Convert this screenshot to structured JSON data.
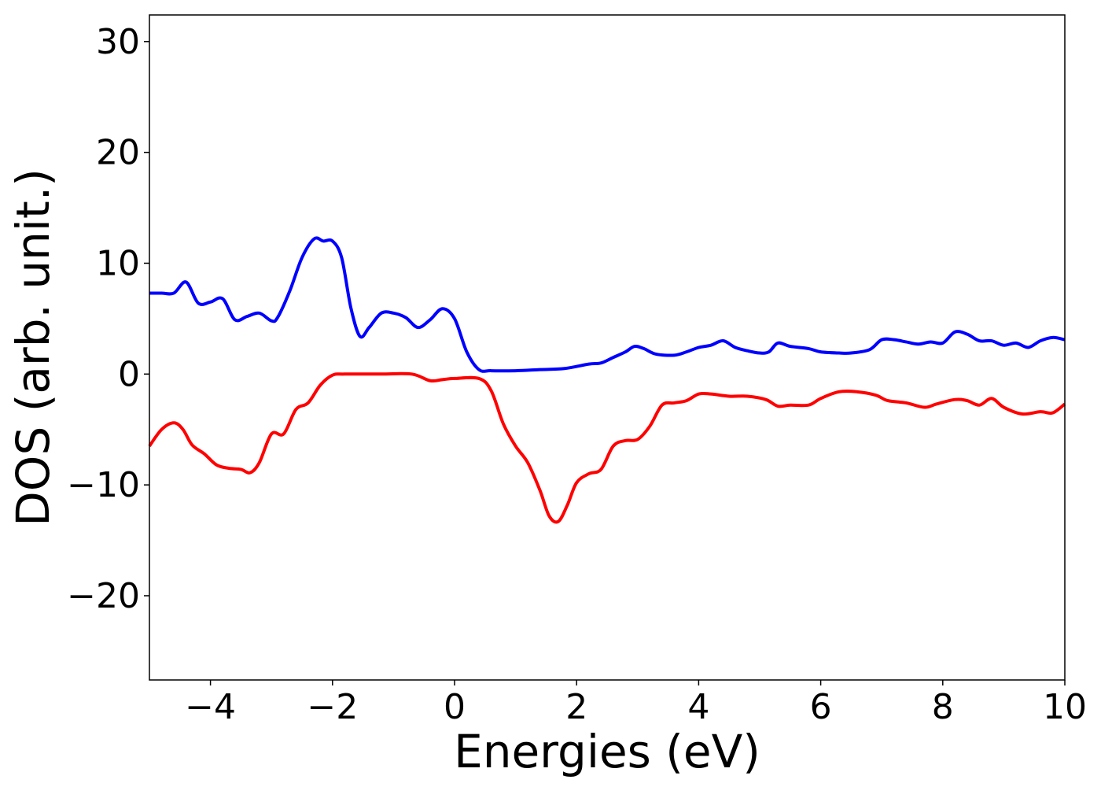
{
  "chart_data": {
    "type": "line",
    "title": "",
    "xlabel": "Energies (eV)",
    "ylabel": "DOS (arb. unit.)",
    "xlim": [
      -5,
      10
    ],
    "ylim": [
      -27.6,
      32.4
    ],
    "xticks": [
      -4,
      -2,
      0,
      2,
      4,
      6,
      8,
      10
    ],
    "xtick_labels": [
      "−4",
      "−2",
      "0",
      "2",
      "4",
      "6",
      "8",
      "10"
    ],
    "yticks": [
      -20,
      -10,
      0,
      10,
      20,
      30
    ],
    "ytick_labels": [
      "−20",
      "−10",
      "0",
      "10",
      "20",
      "30"
    ],
    "grid": false,
    "series": [
      {
        "color": "#0000ff",
        "points": [
          [
            -5.0,
            7.3
          ],
          [
            -4.8,
            7.3
          ],
          [
            -4.6,
            7.3
          ],
          [
            -4.4,
            8.3
          ],
          [
            -4.2,
            6.4
          ],
          [
            -4.0,
            6.5
          ],
          [
            -3.8,
            6.8
          ],
          [
            -3.6,
            4.9
          ],
          [
            -3.4,
            5.2
          ],
          [
            -3.2,
            5.5
          ],
          [
            -3.0,
            4.8
          ],
          [
            -2.9,
            5.1
          ],
          [
            -2.7,
            7.5
          ],
          [
            -2.5,
            10.5
          ],
          [
            -2.3,
            12.2
          ],
          [
            -2.15,
            12.0
          ],
          [
            -2.0,
            12.0
          ],
          [
            -1.85,
            10.5
          ],
          [
            -1.7,
            6.0
          ],
          [
            -1.55,
            3.4
          ],
          [
            -1.4,
            4.2
          ],
          [
            -1.2,
            5.5
          ],
          [
            -1.0,
            5.5
          ],
          [
            -0.8,
            5.1
          ],
          [
            -0.6,
            4.2
          ],
          [
            -0.4,
            4.9
          ],
          [
            -0.2,
            5.9
          ],
          [
            0.0,
            5.0
          ],
          [
            0.2,
            2.0
          ],
          [
            0.4,
            0.4
          ],
          [
            0.6,
            0.3
          ],
          [
            1.0,
            0.3
          ],
          [
            1.4,
            0.4
          ],
          [
            1.8,
            0.5
          ],
          [
            2.2,
            0.9
          ],
          [
            2.4,
            1.0
          ],
          [
            2.6,
            1.5
          ],
          [
            2.8,
            2.0
          ],
          [
            2.95,
            2.5
          ],
          [
            3.1,
            2.3
          ],
          [
            3.3,
            1.8
          ],
          [
            3.6,
            1.7
          ],
          [
            3.8,
            2.0
          ],
          [
            4.0,
            2.4
          ],
          [
            4.2,
            2.6
          ],
          [
            4.4,
            3.0
          ],
          [
            4.6,
            2.4
          ],
          [
            4.8,
            2.1
          ],
          [
            5.0,
            1.9
          ],
          [
            5.15,
            2.0
          ],
          [
            5.3,
            2.8
          ],
          [
            5.5,
            2.5
          ],
          [
            5.8,
            2.3
          ],
          [
            6.0,
            2.0
          ],
          [
            6.3,
            1.9
          ],
          [
            6.5,
            1.9
          ],
          [
            6.8,
            2.2
          ],
          [
            7.0,
            3.1
          ],
          [
            7.2,
            3.1
          ],
          [
            7.4,
            2.9
          ],
          [
            7.6,
            2.7
          ],
          [
            7.8,
            2.9
          ],
          [
            8.0,
            2.8
          ],
          [
            8.2,
            3.8
          ],
          [
            8.4,
            3.6
          ],
          [
            8.6,
            3.0
          ],
          [
            8.8,
            3.0
          ],
          [
            9.0,
            2.6
          ],
          [
            9.2,
            2.8
          ],
          [
            9.4,
            2.4
          ],
          [
            9.6,
            3.0
          ],
          [
            9.8,
            3.3
          ],
          [
            10.0,
            3.1
          ]
        ]
      },
      {
        "color": "#ff0000",
        "points": [
          [
            -5.0,
            -6.5
          ],
          [
            -4.8,
            -5.0
          ],
          [
            -4.6,
            -4.4
          ],
          [
            -4.45,
            -5.0
          ],
          [
            -4.3,
            -6.4
          ],
          [
            -4.1,
            -7.2
          ],
          [
            -3.9,
            -8.2
          ],
          [
            -3.7,
            -8.5
          ],
          [
            -3.5,
            -8.6
          ],
          [
            -3.35,
            -8.9
          ],
          [
            -3.2,
            -8.0
          ],
          [
            -3.0,
            -5.4
          ],
          [
            -2.8,
            -5.4
          ],
          [
            -2.6,
            -3.2
          ],
          [
            -2.4,
            -2.6
          ],
          [
            -2.2,
            -1.0
          ],
          [
            -2.0,
            -0.1
          ],
          [
            -1.8,
            0.0
          ],
          [
            -1.2,
            0.0
          ],
          [
            -0.7,
            0.0
          ],
          [
            -0.4,
            -0.6
          ],
          [
            -0.2,
            -0.5
          ],
          [
            0.0,
            -0.4
          ],
          [
            0.4,
            -0.4
          ],
          [
            0.6,
            -1.5
          ],
          [
            0.8,
            -4.5
          ],
          [
            1.0,
            -6.5
          ],
          [
            1.2,
            -8.0
          ],
          [
            1.4,
            -10.5
          ],
          [
            1.55,
            -12.8
          ],
          [
            1.7,
            -13.3
          ],
          [
            1.85,
            -11.8
          ],
          [
            2.0,
            -9.8
          ],
          [
            2.2,
            -9.0
          ],
          [
            2.4,
            -8.6
          ],
          [
            2.6,
            -6.5
          ],
          [
            2.8,
            -6.0
          ],
          [
            3.0,
            -5.9
          ],
          [
            3.2,
            -4.7
          ],
          [
            3.4,
            -2.8
          ],
          [
            3.6,
            -2.6
          ],
          [
            3.8,
            -2.4
          ],
          [
            4.0,
            -1.8
          ],
          [
            4.2,
            -1.8
          ],
          [
            4.5,
            -2.0
          ],
          [
            4.8,
            -2.0
          ],
          [
            5.1,
            -2.3
          ],
          [
            5.3,
            -2.9
          ],
          [
            5.5,
            -2.8
          ],
          [
            5.8,
            -2.8
          ],
          [
            6.0,
            -2.2
          ],
          [
            6.3,
            -1.6
          ],
          [
            6.6,
            -1.6
          ],
          [
            6.9,
            -1.9
          ],
          [
            7.1,
            -2.4
          ],
          [
            7.4,
            -2.6
          ],
          [
            7.7,
            -3.0
          ],
          [
            7.9,
            -2.7
          ],
          [
            8.2,
            -2.3
          ],
          [
            8.4,
            -2.4
          ],
          [
            8.6,
            -2.8
          ],
          [
            8.8,
            -2.2
          ],
          [
            9.0,
            -3.0
          ],
          [
            9.3,
            -3.6
          ],
          [
            9.6,
            -3.4
          ],
          [
            9.8,
            -3.5
          ],
          [
            10.0,
            -2.7
          ]
        ]
      }
    ]
  }
}
